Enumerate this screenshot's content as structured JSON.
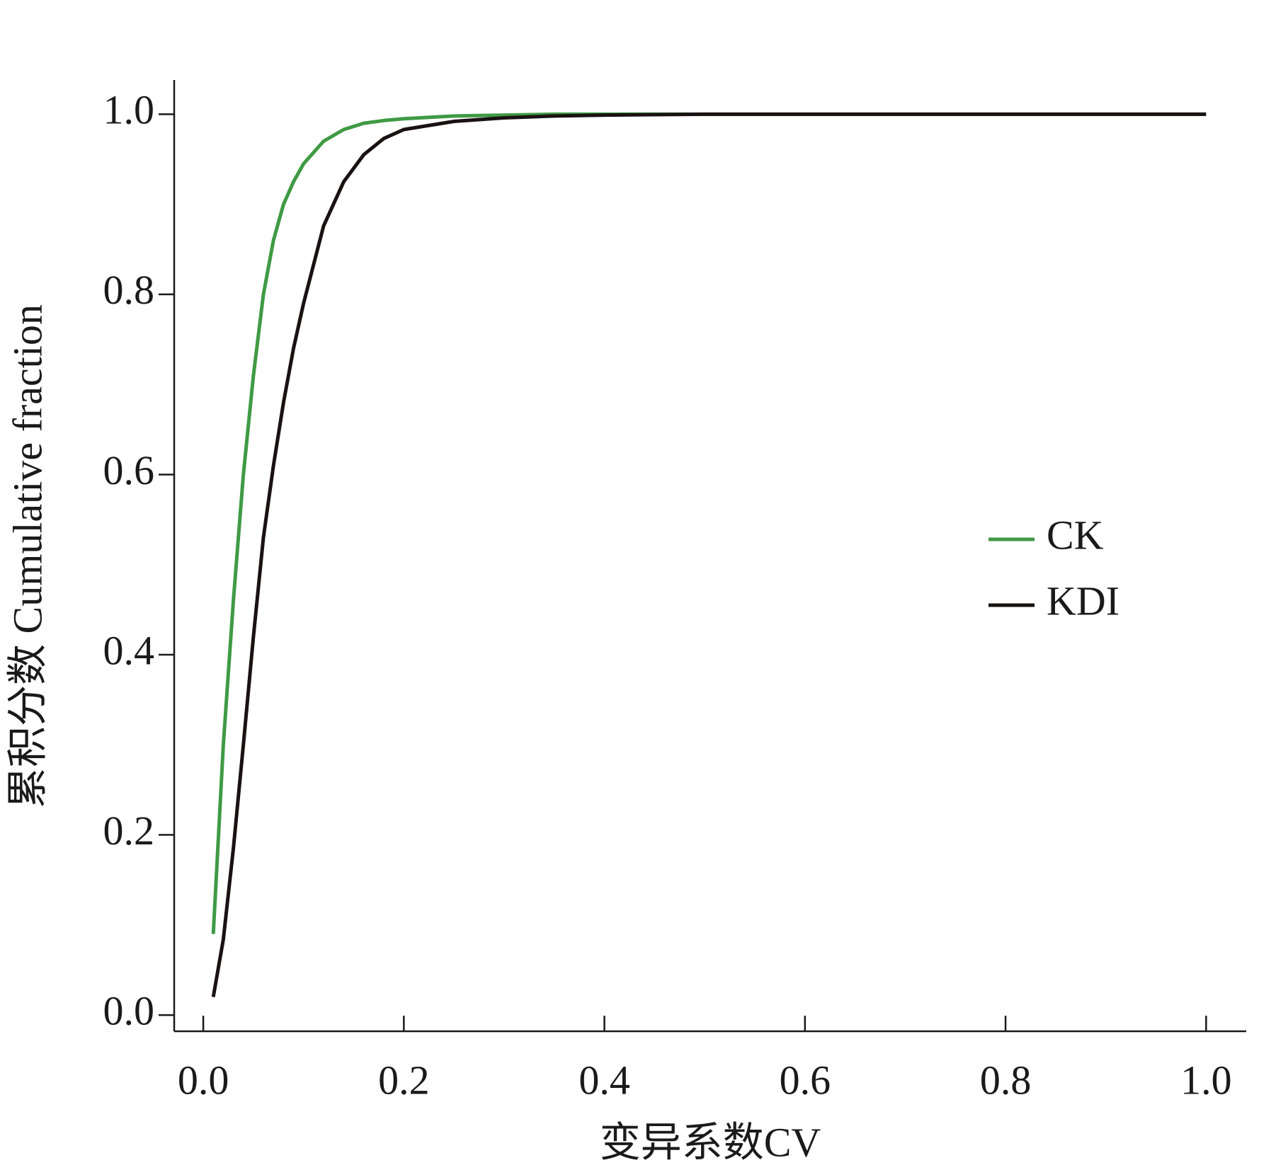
{
  "chart_data": {
    "type": "line",
    "x_label": "变异系数CV",
    "y_label": "累积分数 Cumulative fraction",
    "x": [
      0.01,
      0.02,
      0.03,
      0.04,
      0.05,
      0.06,
      0.07,
      0.08,
      0.09,
      0.1,
      0.12,
      0.14,
      0.16,
      0.18,
      0.2,
      0.25,
      0.3,
      0.35,
      0.4,
      0.5,
      1.0
    ],
    "series": [
      {
        "name": "CK",
        "color": "#3f9a44",
        "values": [
          0.09,
          0.3,
          0.46,
          0.6,
          0.71,
          0.8,
          0.86,
          0.9,
          0.925,
          0.945,
          0.97,
          0.983,
          0.99,
          0.993,
          0.995,
          0.998,
          0.999,
          1.0,
          1.0,
          1.0,
          1.0
        ]
      },
      {
        "name": "KDI",
        "color": "#1a1212",
        "values": [
          0.02,
          0.084,
          0.185,
          0.3,
          0.42,
          0.53,
          0.61,
          0.68,
          0.74,
          0.79,
          0.876,
          0.925,
          0.955,
          0.973,
          0.983,
          0.992,
          0.996,
          0.998,
          0.999,
          1.0,
          1.0
        ]
      }
    ],
    "xlim": [
      -0.029,
      1.04
    ],
    "ylim": [
      -0.018,
      1.038
    ],
    "xticks": [
      {
        "value": 0,
        "label": "0.0"
      },
      0.2,
      0.4,
      0.6,
      0.8,
      {
        "value": 1,
        "label": "1.0"
      }
    ],
    "yticks": [
      {
        "value": 0,
        "label": "0.0"
      },
      0.2,
      0.4,
      0.6,
      0.8,
      {
        "value": 1,
        "label": "1.0"
      }
    ],
    "grid": false,
    "legend": "right"
  }
}
